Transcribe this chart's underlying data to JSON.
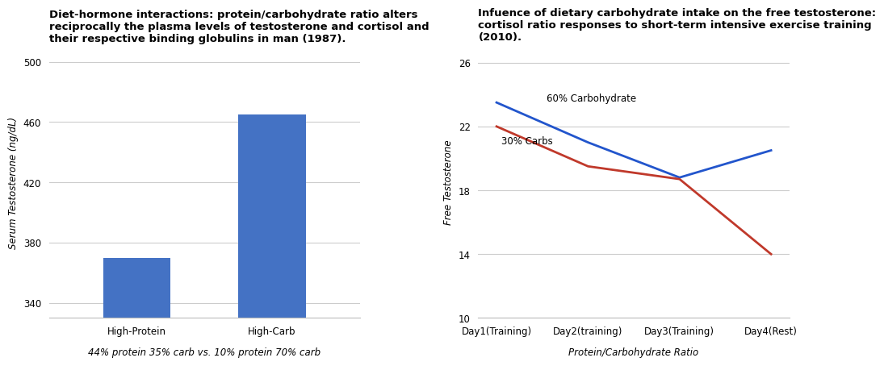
{
  "bar_categories": [
    "High-Protein",
    "High-Carb"
  ],
  "bar_values": [
    370,
    465
  ],
  "bar_bottom": 330,
  "bar_color": "#4472c4",
  "bar_ylim": [
    330,
    510
  ],
  "bar_yticks": [
    340,
    380,
    420,
    460,
    500
  ],
  "bar_ylabel": "Serum Testosterone (ng/dL)",
  "bar_title": "Diet-hormone interactions: protein/carbohydrate ratio alters\nreciprocally the plasma levels of testosterone and cortisol and\ntheir respective binding globulins in man (1987).",
  "bar_xlabel": "44% protein 35% carb vs. 10% protein 70% carb",
  "line_x_labels": [
    "Day1(Training)",
    "Day2(training)",
    "Day3(Training)",
    "Day4(Rest)"
  ],
  "line_60carb": [
    23.5,
    21.0,
    18.8,
    20.5
  ],
  "line_30carb": [
    22.0,
    19.5,
    18.7,
    14.0
  ],
  "line_60_color": "#2255cc",
  "line_30_color": "#c0392b",
  "line_ylim": [
    10,
    27
  ],
  "line_yticks": [
    10,
    14,
    18,
    22,
    26
  ],
  "line_ylabel": "Free Testosterone",
  "line_title": "Infuence of dietary carbohydrate intake on the free testosterone:\ncortisol ratio responses to short-term intensive exercise training\n(2010).",
  "line_xlabel": "Protein/Carbohydrate Ratio",
  "label_60": "60% Carbohydrate",
  "label_30": "30% Carbs",
  "bg_color": "#ffffff",
  "grid_color": "#cccccc",
  "title_fontsize": 9.5,
  "axis_label_fontsize": 8.5,
  "tick_fontsize": 8.5
}
